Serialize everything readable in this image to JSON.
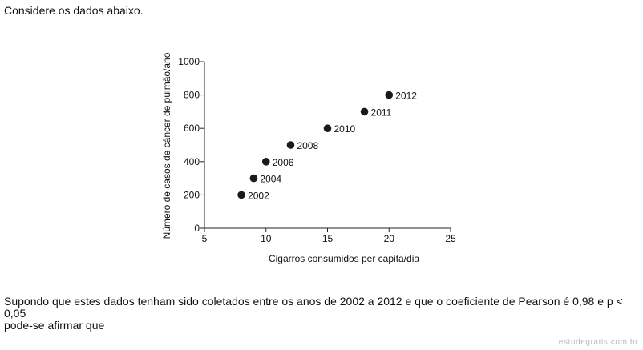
{
  "intro_text": "Considere os dados abaixo.",
  "question_line1": "Supondo que estes dados tenham sido coletados entre os anos de 2002 a 2012 e que o coeficiente de Pearson é 0,98 e p < 0,05",
  "question_line2": "pode-se afirmar que",
  "watermark": "estudegratis.com.br",
  "chart_data": {
    "type": "scatter",
    "title": "",
    "xlabel": "Cigarros consumidos per capita/dia",
    "ylabel": "Número de casos de câncer de pulmão/ano",
    "xlim": [
      5,
      25
    ],
    "ylim": [
      0,
      1000
    ],
    "x_ticks": [
      5,
      10,
      15,
      20,
      25
    ],
    "y_ticks": [
      0,
      200,
      400,
      600,
      800,
      1000
    ],
    "grid": false,
    "legend": "none",
    "marker_color": "#1a1a1a",
    "points": [
      {
        "x": 8,
        "y": 200,
        "label": "2002"
      },
      {
        "x": 9,
        "y": 300,
        "label": "2004"
      },
      {
        "x": 10,
        "y": 400,
        "label": "2006"
      },
      {
        "x": 12,
        "y": 500,
        "label": "2008"
      },
      {
        "x": 15,
        "y": 600,
        "label": "2010"
      },
      {
        "x": 18,
        "y": 700,
        "label": "2011"
      },
      {
        "x": 20,
        "y": 800,
        "label": "2012"
      }
    ]
  }
}
